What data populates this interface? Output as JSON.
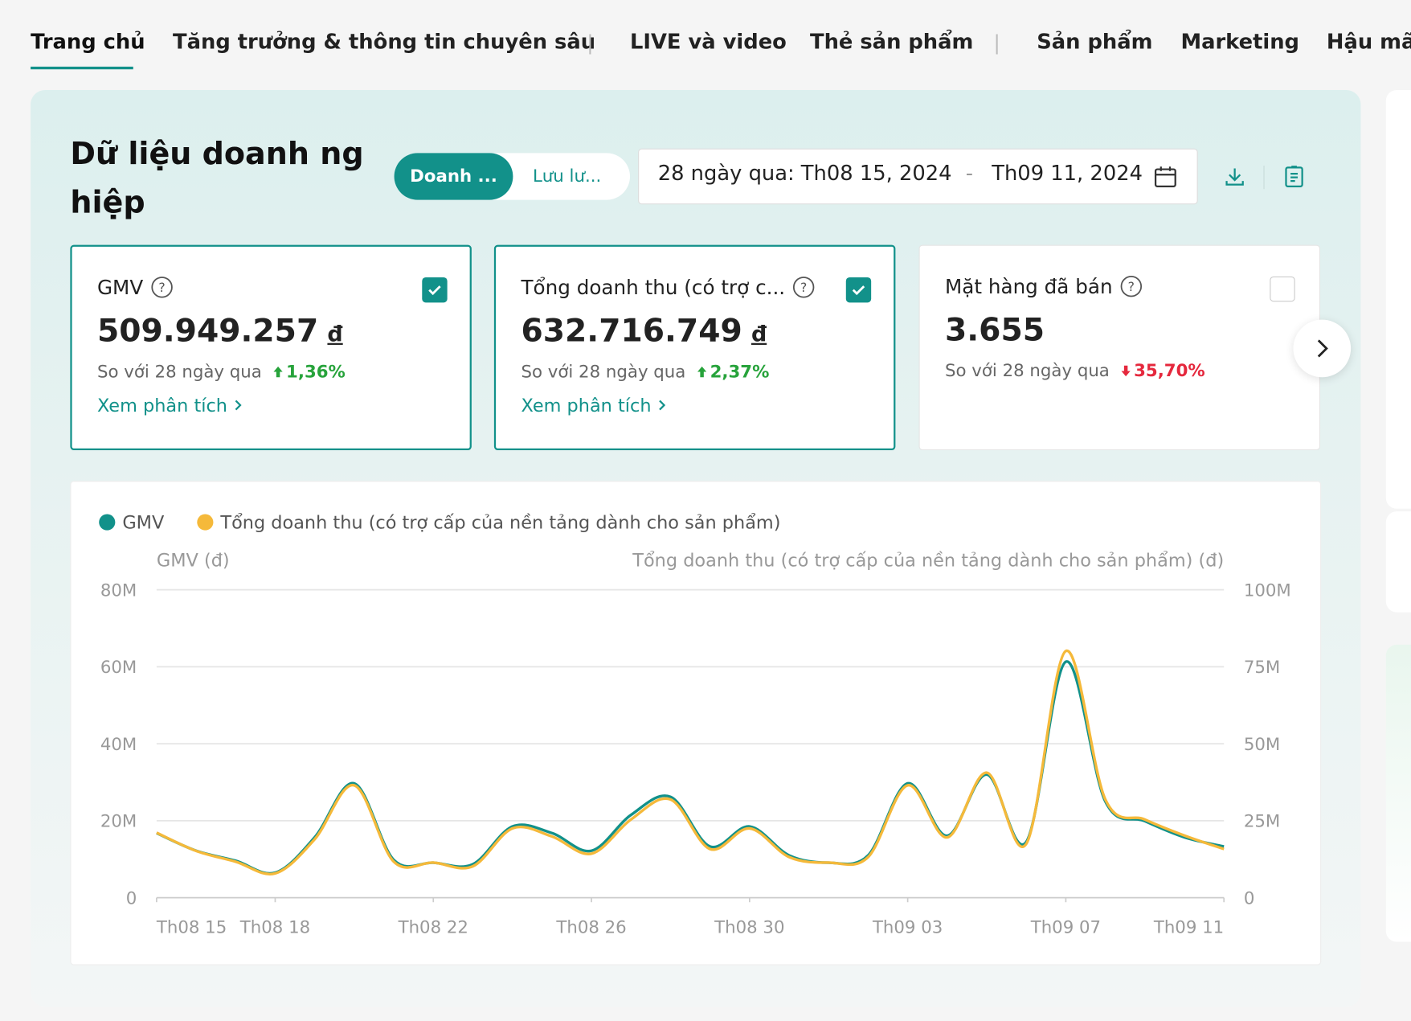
{
  "nav": {
    "tabs": [
      "Trang chủ",
      "Tăng trưởng & thông tin chuyên sâu",
      "LIVE và video",
      "Thẻ sản phẩm",
      "Sản phẩm",
      "Marketing",
      "Hậu mãi"
    ]
  },
  "header": {
    "title": "Dữ liệu doanh nghiệp",
    "toggle": [
      "Doanh ...",
      "Lưu lư..."
    ],
    "date_prefix": "28 ngày qua:",
    "date_start": "Th08 15, 2024",
    "date_sep": "-",
    "date_end": "Th09 11, 2024"
  },
  "cards": [
    {
      "label": "GMV",
      "value": "509.949.257",
      "unit": "đ",
      "compare": "So với 28 ngày qua",
      "change": "1,36%",
      "direction": "up",
      "link": "Xem phân tích",
      "checked": true
    },
    {
      "label": "Tổng doanh thu (có trợ c...",
      "value": "632.716.749",
      "unit": "đ",
      "compare": "So với 28 ngày qua",
      "change": "2,37%",
      "direction": "up",
      "link": "Xem phân tích",
      "checked": true
    },
    {
      "label": "Mặt hàng đã bán",
      "value": "3.655",
      "compare": "So với 28 ngày qua",
      "change": "35,70%",
      "direction": "down",
      "checked": false
    }
  ],
  "chart_data": {
    "type": "line",
    "ylabel": "GMV (đ)",
    "y2label": "Tổng doanh thu (có trợ cấp của nền tảng dành cho sản phẩm) (đ)",
    "categories": [
      "Th08 15",
      null,
      null,
      "Th08 18",
      null,
      null,
      null,
      "Th08 22",
      null,
      null,
      null,
      "Th08 26",
      null,
      null,
      null,
      "Th08 30",
      null,
      null,
      null,
      "Th09 03",
      null,
      null,
      null,
      "Th09 07",
      null,
      null,
      null,
      "Th09 11"
    ],
    "series": [
      {
        "name": "GMV",
        "color": "#12918a",
        "values": [
          16.8,
          12.2,
          9.6,
          6.5,
          15.7,
          29.7,
          9.8,
          9.1,
          8.7,
          18.5,
          16.8,
          12.2,
          21.5,
          26.2,
          13.3,
          18.5,
          11,
          9.1,
          11,
          29.7,
          16.1,
          32,
          14.5,
          61.3,
          25,
          19.9,
          15.7,
          13.3
        ]
      },
      {
        "name": "Tổng doanh thu (có trợ cấp của nền tảng dành cho sản phẩm)",
        "color": "#f5b93a",
        "axis": "y2",
        "values": [
          21.1,
          15.2,
          11.7,
          7.9,
          19,
          36.5,
          11.7,
          11.4,
          10.2,
          22.5,
          19.9,
          14.3,
          25.4,
          31.9,
          15.8,
          22.5,
          13.2,
          11.4,
          13.2,
          36.5,
          19.6,
          40.6,
          17.5,
          80.1,
          31.9,
          25.4,
          20.2,
          15.8
        ]
      }
    ],
    "ylim": [
      0,
      80
    ],
    "yticks": [
      {
        "value": 0,
        "label": "0"
      },
      {
        "value": 20,
        "label": "20M"
      },
      {
        "value": 40,
        "label": "40M"
      },
      {
        "value": 60,
        "label": "60M"
      },
      {
        "value": 80,
        "label": "80M"
      }
    ],
    "y2lim": [
      0,
      100
    ],
    "y2ticks": [
      {
        "value": 0,
        "label": "0"
      },
      {
        "value": 25,
        "label": "25M"
      },
      {
        "value": 50,
        "label": "50M"
      },
      {
        "value": 75,
        "label": "75M"
      },
      {
        "value": 100,
        "label": "100M"
      }
    ],
    "grid": true
  }
}
